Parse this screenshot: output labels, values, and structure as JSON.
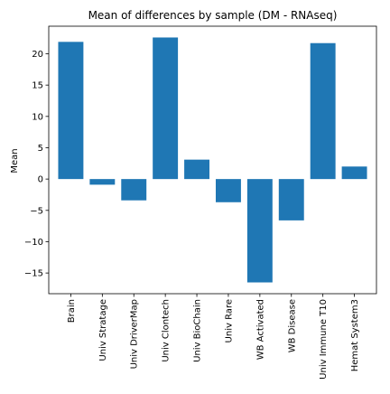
{
  "chart_data": {
    "type": "bar",
    "title": "Mean of differences by sample (DM - RNAseq)",
    "xlabel": "",
    "ylabel": "Mean",
    "categories": [
      "Brain",
      "Univ Stratage",
      "Univ DriverMap",
      "Univ Clontech",
      "Univ BioChain",
      "Univ Rare",
      "WB Activated",
      "WB Disease",
      "Univ Immune T10",
      "Hemat System3"
    ],
    "values": [
      21.9,
      -0.9,
      -3.4,
      22.6,
      3.1,
      -3.7,
      -16.5,
      -6.6,
      21.7,
      2.0
    ],
    "ylim": [
      -18.3,
      24.4
    ],
    "yticks": [
      -15,
      -10,
      -5,
      0,
      5,
      10,
      15,
      20
    ],
    "grid": false,
    "bar_color": "#1f77b4"
  }
}
